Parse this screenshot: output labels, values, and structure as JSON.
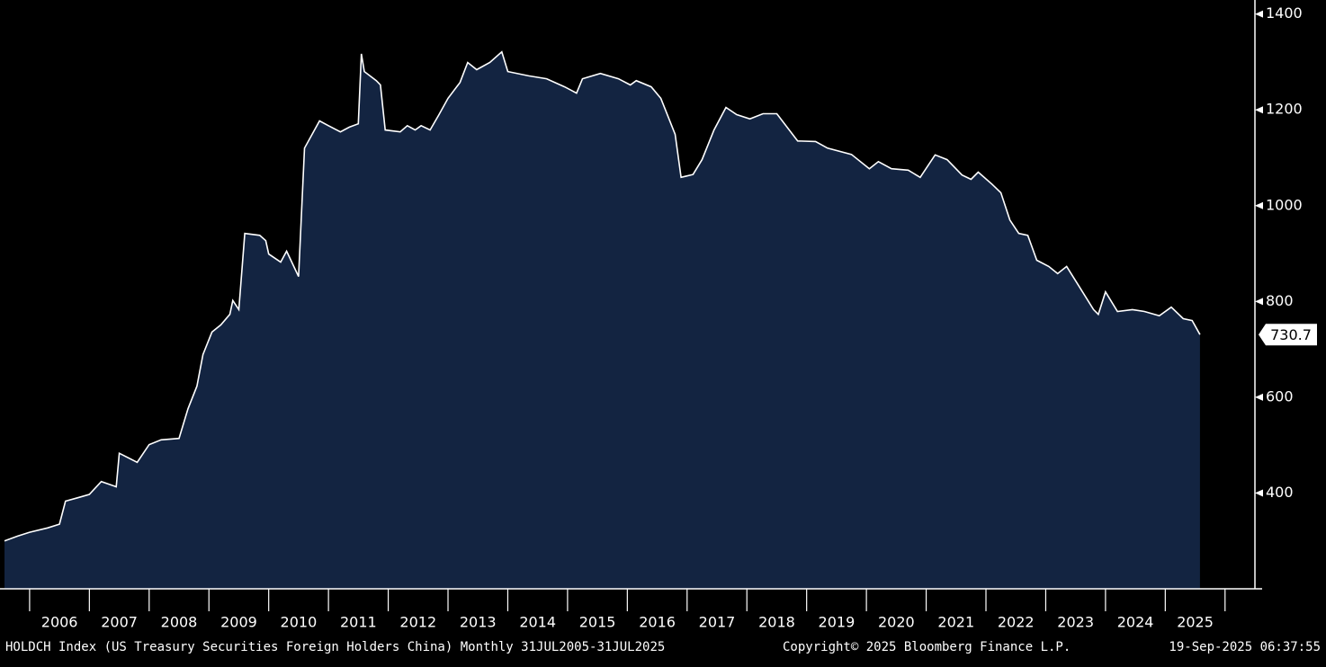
{
  "chart_data": {
    "type": "area",
    "x": [
      2005.58,
      2005.8,
      2006.0,
      2006.3,
      2006.5,
      2006.6,
      2006.8,
      2007.0,
      2007.2,
      2007.45,
      2007.5,
      2007.8,
      2008.0,
      2008.2,
      2008.5,
      2008.65,
      2008.8,
      2008.9,
      2009.05,
      2009.2,
      2009.35,
      2009.4,
      2009.5,
      2009.6,
      2009.85,
      2009.95,
      2010.0,
      2010.2,
      2010.3,
      2010.42,
      2010.5,
      2010.6,
      2010.85,
      2011.0,
      2011.2,
      2011.35,
      2011.5,
      2011.55,
      2011.6,
      2011.8,
      2011.87,
      2011.95,
      2012.2,
      2012.32,
      2012.45,
      2012.55,
      2012.7,
      2012.85,
      2013.0,
      2013.2,
      2013.33,
      2013.48,
      2013.7,
      2013.9,
      2014.0,
      2014.35,
      2014.65,
      2014.95,
      2015.15,
      2015.25,
      2015.55,
      2015.85,
      2016.05,
      2016.15,
      2016.4,
      2016.56,
      2016.8,
      2016.9,
      2017.1,
      2017.25,
      2017.45,
      2017.65,
      2017.83,
      2018.05,
      2018.27,
      2018.5,
      2018.85,
      2019.15,
      2019.35,
      2019.75,
      2020.05,
      2020.2,
      2020.42,
      2020.7,
      2020.9,
      2021.15,
      2021.35,
      2021.6,
      2021.75,
      2021.87,
      2022.1,
      2022.25,
      2022.4,
      2022.55,
      2022.7,
      2022.85,
      2023.05,
      2023.2,
      2023.35,
      2023.55,
      2023.8,
      2023.88,
      2024.0,
      2024.2,
      2024.45,
      2024.65,
      2024.9,
      2025.1,
      2025.3,
      2025.45,
      2025.58
    ],
    "values": [
      300,
      310,
      318,
      327,
      335,
      383,
      390,
      397,
      424,
      413,
      483,
      464,
      501,
      511,
      514,
      576,
      623,
      689,
      736,
      751,
      773,
      802,
      783,
      942,
      938,
      927,
      899,
      882,
      905,
      873,
      852,
      1120,
      1177,
      1167,
      1154,
      1164,
      1171,
      1317,
      1280,
      1261,
      1252,
      1158,
      1154,
      1167,
      1158,
      1167,
      1158,
      1190,
      1224,
      1257,
      1299,
      1284,
      1299,
      1321,
      1280,
      1271,
      1265,
      1248,
      1235,
      1265,
      1276,
      1265,
      1252,
      1261,
      1248,
      1224,
      1149,
      1059,
      1065,
      1096,
      1158,
      1205,
      1190,
      1181,
      1192,
      1192,
      1135,
      1134,
      1120,
      1107,
      1077,
      1092,
      1077,
      1074,
      1059,
      1106,
      1096,
      1064,
      1055,
      1070,
      1045,
      1027,
      970,
      942,
      938,
      886,
      873,
      858,
      873,
      833,
      783,
      773,
      820,
      779,
      783,
      779,
      770,
      788,
      764,
      760,
      730.7
    ],
    "last_value": 730.7,
    "color": "#132441",
    "line_color": "#ffffff",
    "xlim": [
      2005.58,
      2026.5
    ],
    "xticks": [
      {
        "value": 2006.5,
        "label": "2006"
      },
      {
        "value": 2007.5,
        "label": "2007"
      },
      {
        "value": 2008.5,
        "label": "2008"
      },
      {
        "value": 2009.5,
        "label": "2009"
      },
      {
        "value": 2010.5,
        "label": "2010"
      },
      {
        "value": 2011.5,
        "label": "2011"
      },
      {
        "value": 2012.5,
        "label": "2012"
      },
      {
        "value": 2013.5,
        "label": "2013"
      },
      {
        "value": 2014.5,
        "label": "2014"
      },
      {
        "value": 2015.5,
        "label": "2015"
      },
      {
        "value": 2016.5,
        "label": "2016"
      },
      {
        "value": 2017.5,
        "label": "2017"
      },
      {
        "value": 2018.5,
        "label": "2018"
      },
      {
        "value": 2019.5,
        "label": "2019"
      },
      {
        "value": 2020.5,
        "label": "2020"
      },
      {
        "value": 2021.5,
        "label": "2021"
      },
      {
        "value": 2022.5,
        "label": "2022"
      },
      {
        "value": 2023.5,
        "label": "2023"
      },
      {
        "value": 2024.5,
        "label": "2024"
      },
      {
        "value": 2025.5,
        "label": "2025"
      }
    ],
    "ylim": [
      200,
      1420
    ],
    "yticks": [
      400,
      600,
      800,
      1000,
      1200,
      1400
    ],
    "source": "HOLDCH Index (US Treasury Securities Foreign Holders China)  Monthly 31JUL2005-31JUL2025",
    "copyright": "Copyright© 2025 Bloomberg Finance L.P.",
    "timestamp": "19-Sep-2025 06:37:55"
  }
}
